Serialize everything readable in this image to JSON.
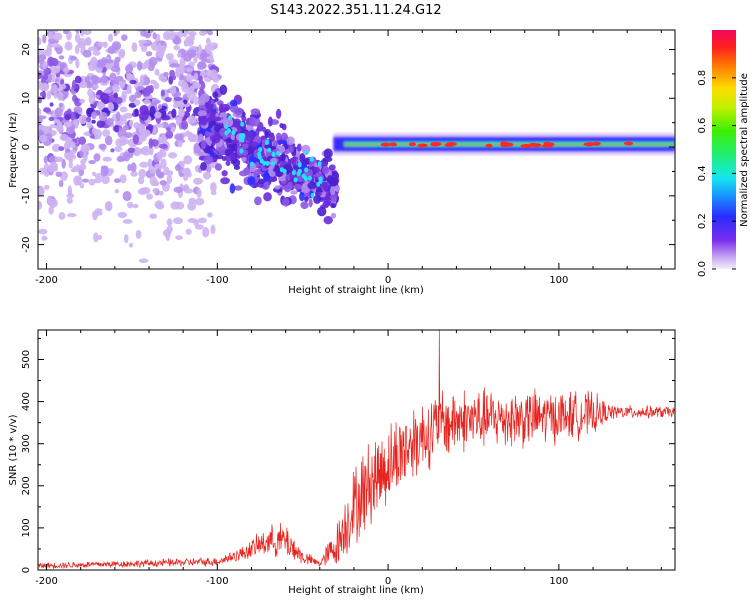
{
  "figure": {
    "title": "S143.2022.351.11.24.G12"
  },
  "colors": {
    "snr_line": "#e8231e",
    "spectro_low": "#dcc8f5",
    "spectro_mid": "#6a2bd8",
    "spectro_high": "#21e3ff"
  },
  "chart_data": [
    {
      "type": "heatmap",
      "name_role": "spectrogram",
      "xlabel": "Height of straight line (km)",
      "ylabel": "Frequency (Hz)",
      "xlim": [
        -205,
        168
      ],
      "ylim": [
        -25,
        24
      ],
      "xticks": [
        -200,
        -100,
        0,
        100
      ],
      "yticks": [
        -20,
        -10,
        0,
        10,
        20
      ],
      "colorbar": {
        "label": "Normalized spectral amplitude",
        "range": [
          0.0,
          1.0
        ],
        "ticks": [
          "0.0",
          "0.2",
          "0.4",
          "0.6",
          "0.8"
        ],
        "colormap": "rainbow"
      },
      "grid": false,
      "features": [
        {
          "x_range": [
            -205,
            -100
          ],
          "freq_center": 8,
          "freq_spread": 15,
          "amplitude": 0.1,
          "note": "scattered weak spots"
        },
        {
          "x_range": [
            -100,
            -35
          ],
          "freq_center_start": 4,
          "freq_center_end": -10,
          "amplitude": 0.3,
          "note": "descending band"
        },
        {
          "x_range": [
            -30,
            168
          ],
          "freq_center": 0.5,
          "amplitude": 0.85,
          "note": "strong narrow line near 0 Hz"
        }
      ]
    },
    {
      "type": "line",
      "name_role": "snr",
      "xlabel": "Height of straight line (km)",
      "ylabel": "SNR (10 * v/v)",
      "xlim": [
        -205,
        168
      ],
      "ylim": [
        0,
        570
      ],
      "xticks": [
        -200,
        -100,
        0,
        100
      ],
      "yticks": [
        0,
        100,
        200,
        300,
        400,
        500
      ],
      "grid": false,
      "envelope": {
        "x": [
          -205,
          -150,
          -100,
          -85,
          -70,
          -60,
          -50,
          -40,
          -30,
          -20,
          -10,
          0,
          10,
          20,
          30,
          40,
          60,
          80,
          100,
          120,
          130,
          168
        ],
        "mean": [
          10,
          15,
          20,
          40,
          70,
          70,
          30,
          15,
          60,
          150,
          210,
          250,
          290,
          320,
          340,
          355,
          360,
          360,
          365,
          370,
          375,
          375
        ],
        "spread": [
          8,
          10,
          12,
          20,
          40,
          50,
          20,
          10,
          60,
          110,
          120,
          110,
          110,
          100,
          100,
          90,
          80,
          80,
          70,
          60,
          20,
          15
        ]
      },
      "max_value": 570
    }
  ]
}
